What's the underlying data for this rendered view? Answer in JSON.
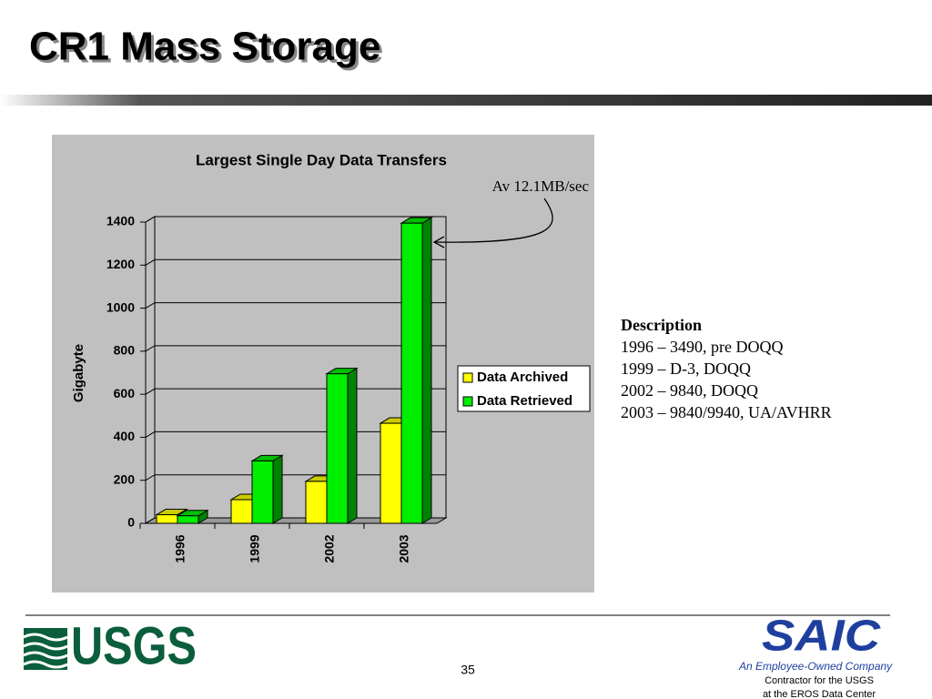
{
  "header": {
    "title": "CR1 Mass Storage"
  },
  "chart_data": {
    "type": "bar3d",
    "title": "Largest Single Day Data Transfers",
    "y_label": "Gigabyte",
    "categories": [
      "1996",
      "1999",
      "2002",
      "2003"
    ],
    "series": [
      {
        "name": "Data Archived",
        "color": "#ffff00",
        "values": [
          40,
          110,
          195,
          465
        ]
      },
      {
        "name": "Data Retrieved",
        "color": "#00ee00",
        "values": [
          35,
          290,
          695,
          1395
        ]
      }
    ],
    "ylim": [
      0,
      1400
    ],
    "yticks": [
      0,
      200,
      400,
      600,
      800,
      1000,
      1200,
      1400
    ],
    "grid": true,
    "annotation": "Av 12.1MB/sec"
  },
  "description": {
    "heading": "Description",
    "lines": [
      "1996 – 3490, pre DOQQ",
      "1999 – D-3, DOQQ",
      "2002 – 9840, DOQQ",
      "2003 – 9840/9940, UA/AVHRR"
    ]
  },
  "footer": {
    "page": "35",
    "usgs": "USGS",
    "saic": "SAIC",
    "saic_tagline": "An Employee-Owned Company",
    "contractor": [
      "Contractor for the USGS",
      "at the EROS Data Center"
    ]
  }
}
